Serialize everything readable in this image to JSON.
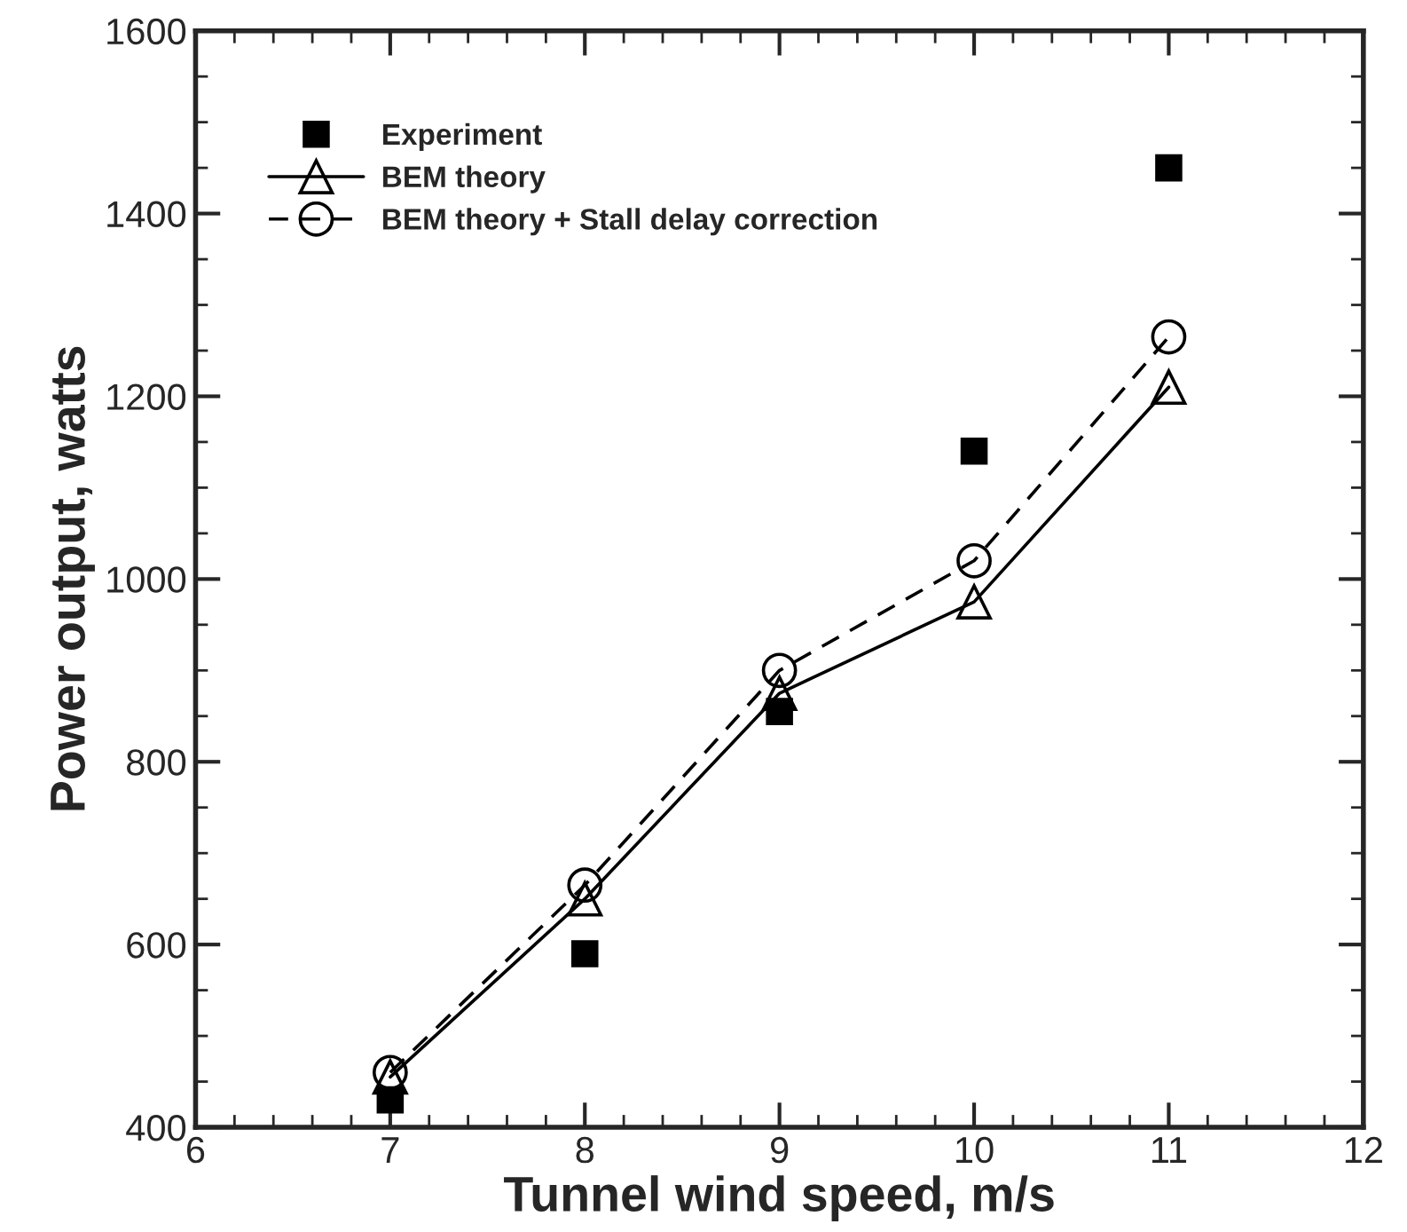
{
  "chart_data": {
    "type": "line",
    "xlabel": "Tunnel wind speed, m/s",
    "ylabel": "Power output, watts",
    "x": [
      7,
      8,
      9,
      10,
      11
    ],
    "series": [
      {
        "name": "Experiment",
        "type": "scatter",
        "color": "#000000",
        "marker": "square",
        "values": [
          430,
          590,
          855,
          1140,
          1450
        ]
      },
      {
        "name": "BEM theory",
        "color": "#000000",
        "marker": "triangle",
        "line_style": "solid",
        "values": [
          455,
          650,
          875,
          975,
          1210
        ]
      },
      {
        "name": "BEM theory + Stall delay correction",
        "color": "#000000",
        "marker": "circle",
        "line_style": "dashed",
        "values": [
          460,
          665,
          900,
          1020,
          1265
        ]
      }
    ],
    "xlim": [
      6,
      12
    ],
    "xticks": [
      6,
      7,
      8,
      9,
      10,
      11,
      12
    ],
    "ylim": [
      400,
      1600
    ],
    "yticks": [
      400,
      600,
      800,
      1000,
      1200,
      1400,
      1600
    ],
    "grid": false,
    "legend": "top left"
  }
}
